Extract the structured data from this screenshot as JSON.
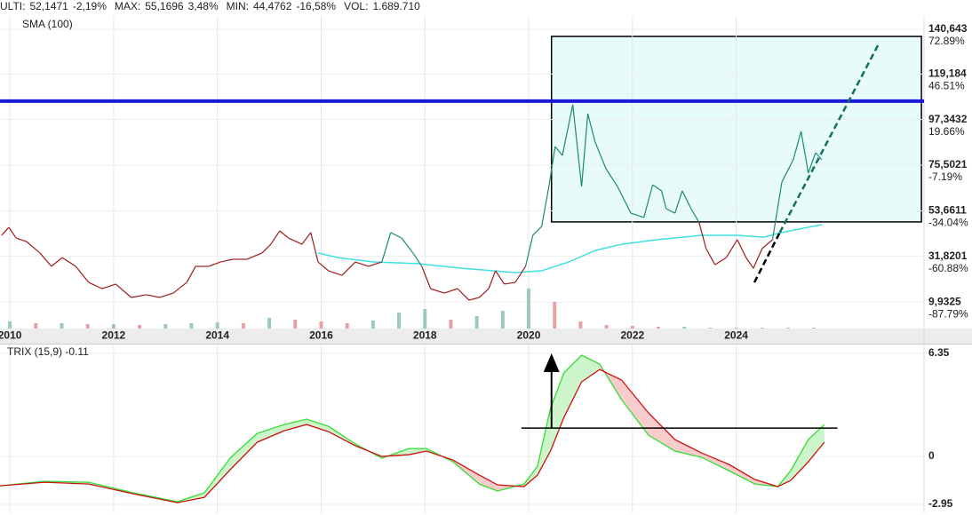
{
  "header": {
    "items": [
      {
        "label": "ULTI:",
        "value": "52,1471",
        "change": "-2,19%",
        "color": "#c0392b"
      },
      {
        "label": "MAX:",
        "value": "55,1696",
        "change": "3,48%",
        "color": "#2e8b57"
      },
      {
        "label": "MIN:",
        "value": "44,4762",
        "change": "-16,58%",
        "color": "#c0392b"
      },
      {
        "label": "VOL:",
        "value": "1.689.710",
        "color": "#222222"
      }
    ]
  },
  "chart_data": [
    {
      "type": "line",
      "xlim": [
        2009.81,
        2027.62
      ],
      "xticks": [
        2010,
        2012,
        2014,
        2016,
        2018,
        2020,
        2022,
        2024
      ],
      "ylim": [
        -2.8,
        147
      ],
      "yticks": [
        {
          "value": 140.643,
          "label": "140,643"
        },
        {
          "value": 119.184,
          "label": "119,184"
        },
        {
          "value": 97.3432,
          "label": "97,3432"
        },
        {
          "value": 75.5021,
          "label": "75,5021"
        },
        {
          "value": 53.6611,
          "label": "53,6611"
        },
        {
          "value": 31.8201,
          "label": "31,8201"
        },
        {
          "value": 9.9325,
          "label": "9,9325"
        }
      ],
      "y2lim": [
        -103.44,
        80.7
      ],
      "y2ticks": [
        {
          "value": 72.89,
          "label": "72.89%"
        },
        {
          "value": 46.51,
          "label": "46.51%"
        },
        {
          "value": 19.66,
          "label": "19.66%"
        },
        {
          "value": -7.19,
          "label": "-7.19%"
        },
        {
          "value": -34.04,
          "label": "-34.04%"
        },
        {
          "value": -60.88,
          "label": "-60.88%"
        },
        {
          "value": -87.79,
          "label": "-87.79%"
        }
      ],
      "pos_color": "#2e8b57",
      "neg_color": "#c0392b",
      "grid": true,
      "legend": "top-left",
      "series": [
        {
          "name": "SMA (100)",
          "color": "#3fe0e0",
          "x": [
            2015.94,
            2016.32,
            2017.0,
            2017.86,
            2018.71,
            2019.74,
            2020.25,
            2020.77,
            2021.28,
            2021.79,
            2022.48,
            2023.33,
            2024.02,
            2024.53,
            2024.88,
            2025.22,
            2025.65
          ],
          "values": [
            33.4,
            31.2,
            29.1,
            28.3,
            26.1,
            24.0,
            24.9,
            29.1,
            34.6,
            37.6,
            39.8,
            41.9,
            41.9,
            41.0,
            43.2,
            44.9,
            47.0
          ]
        },
        {
          "color": "#9e1b1b",
          "up_color": "#1b8a70",
          "x": [
            2009.84,
            2009.98,
            2010.12,
            2010.32,
            2010.58,
            2010.8,
            2011.01,
            2011.27,
            2011.52,
            2011.78,
            2012.04,
            2012.34,
            2012.63,
            2012.89,
            2013.15,
            2013.41,
            2013.58,
            2013.83,
            2014.06,
            2014.3,
            2014.57,
            2014.86,
            2015.03,
            2015.2,
            2015.37,
            2015.63,
            2015.8,
            2015.94,
            2016.14,
            2016.4,
            2016.66,
            2016.91,
            2017.17,
            2017.34,
            2017.55,
            2017.77,
            2017.94,
            2018.11,
            2018.37,
            2018.63,
            2018.85,
            2019.05,
            2019.23,
            2019.36,
            2019.53,
            2019.74,
            2019.94,
            2020.08,
            2020.25,
            2020.39,
            2020.51,
            2020.65,
            2020.85,
            2021.02,
            2021.14,
            2021.28,
            2021.49,
            2021.71,
            2021.97,
            2022.22,
            2022.39,
            2022.56,
            2022.65,
            2022.82,
            2022.96,
            2023.13,
            2023.28,
            2023.42,
            2023.59,
            2023.81,
            2024.02,
            2024.19,
            2024.33,
            2024.5,
            2024.7,
            2024.88,
            2025.1,
            2025.25,
            2025.39,
            2025.53,
            2025.65
          ],
          "values": [
            41.9,
            45.7,
            40.6,
            38.9,
            33.4,
            27.0,
            31.2,
            27.0,
            19.3,
            16.3,
            18.5,
            12.1,
            13.4,
            12.1,
            14.2,
            19.3,
            27.0,
            27.0,
            29.1,
            30.4,
            30.4,
            33.4,
            37.6,
            44.0,
            40.6,
            37.6,
            43.2,
            29.1,
            24.9,
            22.7,
            29.1,
            27.0,
            29.1,
            43.2,
            40.6,
            33.4,
            27.0,
            16.3,
            14.2,
            16.3,
            10.8,
            12.1,
            16.3,
            24.9,
            18.5,
            19.3,
            27.0,
            41.9,
            46.1,
            65.3,
            84.4,
            80.2,
            104.5,
            65.3,
            100.2,
            86.6,
            73.8,
            65.3,
            52.5,
            50.4,
            66.1,
            63.2,
            54.6,
            52.5,
            63.2,
            54.6,
            48.3,
            35.5,
            27.8,
            31.2,
            39.8,
            31.2,
            26.1,
            35.5,
            39.8,
            67.4,
            78.1,
            91.7,
            71.7,
            81.5,
            78.1
          ]
        }
      ],
      "volume": {
        "x": [
          2010.0,
          2010.5,
          2011.0,
          2011.5,
          2012.0,
          2012.5,
          2013.0,
          2013.5,
          2014.0,
          2014.5,
          2015.0,
          2015.5,
          2016.0,
          2016.5,
          2017.0,
          2017.5,
          2018.0,
          2018.5,
          2019.0,
          2019.5,
          2020.0,
          2020.5,
          2021.0,
          2021.5,
          2022.0,
          2022.5,
          2023.0,
          2023.5,
          2024.0,
          2024.5,
          2025.0,
          2025.5
        ],
        "values": [
          8,
          6,
          6,
          5,
          5,
          4,
          5,
          6,
          7,
          6,
          12,
          10,
          8,
          6,
          9,
          18,
          22,
          10,
          14,
          20,
          45,
          30,
          8,
          4,
          3,
          2,
          2,
          1,
          1,
          1,
          1,
          1
        ],
        "vlim": [
          0,
          60
        ],
        "up_color": "#9ccbb8",
        "down_color": "#e3a3a3"
      },
      "annotations": {
        "hline": {
          "y": 106.2,
          "color": "#1a1ad6"
        },
        "box": {
          "x": [
            2020.44,
            2027.57
          ],
          "y": [
            48.3,
            137.2
          ],
          "fill": "#e8fbfb"
        },
        "trendlines": [
          {
            "x": [
              2024.35,
              2024.84
            ],
            "y": [
              19.3,
              43.2
            ],
            "color": "#000000"
          },
          {
            "x": [
              2024.84,
              2026.76
            ],
            "y": [
              43.2,
              134.3
            ],
            "color": "#12705f"
          }
        ]
      }
    },
    {
      "type": "line",
      "title": "TRIX (15,9) -0.11",
      "xlim": [
        2009.81,
        2027.62
      ],
      "xticks": [
        2010,
        2012,
        2014,
        2016,
        2018,
        2020,
        2022,
        2024
      ],
      "ylim": [
        -3.5,
        6.9
      ],
      "yticks": [
        6.35,
        0,
        -2.95
      ],
      "ytick_colors": [
        "#c0392b",
        "#666666",
        "#2e8b57"
      ],
      "grid": true,
      "x": [
        2009.81,
        2010.67,
        2011.52,
        2012.38,
        2013.23,
        2013.75,
        2014.26,
        2014.77,
        2015.29,
        2015.72,
        2016.14,
        2016.66,
        2017.17,
        2017.69,
        2018.03,
        2018.54,
        2019.05,
        2019.4,
        2019.91,
        2020.17,
        2020.42,
        2020.68,
        2021.02,
        2021.37,
        2021.79,
        2022.31,
        2022.82,
        2023.33,
        2023.86,
        2024.36,
        2024.8,
        2025.05,
        2025.39,
        2025.7
      ],
      "series": [
        {
          "color": "#33dd33",
          "values": [
            -1.81,
            -1.53,
            -1.59,
            -2.24,
            -2.79,
            -2.24,
            -0.05,
            1.42,
            1.97,
            2.3,
            1.86,
            0.77,
            -0.11,
            0.49,
            0.49,
            -0.33,
            -1.7,
            -2.13,
            -1.7,
            -0.6,
            2.96,
            5.15,
            6.24,
            5.69,
            3.5,
            1.31,
            0.33,
            -0.05,
            -0.88,
            -1.7,
            -1.86,
            -0.88,
            1.04,
            1.97
          ]
        },
        {
          "color": "#cc1111",
          "values": [
            -1.81,
            -1.59,
            -1.7,
            -2.3,
            -2.85,
            -2.52,
            -0.77,
            0.88,
            1.59,
            1.97,
            1.53,
            0.66,
            0,
            0.11,
            0.33,
            -0.22,
            -1.15,
            -1.75,
            -1.86,
            -1.15,
            0.33,
            2.41,
            4.6,
            5.36,
            4.71,
            2.68,
            1.04,
            0.22,
            -0.49,
            -1.42,
            -1.86,
            -1.48,
            -0.33,
            0.88
          ]
        }
      ],
      "fill_up": "#ccf5cc",
      "fill_down": "#f8cccc",
      "annotations": {
        "arrow": {
          "x": 2020.44,
          "y": [
            1.75,
            6.35
          ]
        },
        "hline": {
          "x": [
            2019.86,
            2025.95
          ],
          "y": 1.75
        }
      }
    }
  ]
}
